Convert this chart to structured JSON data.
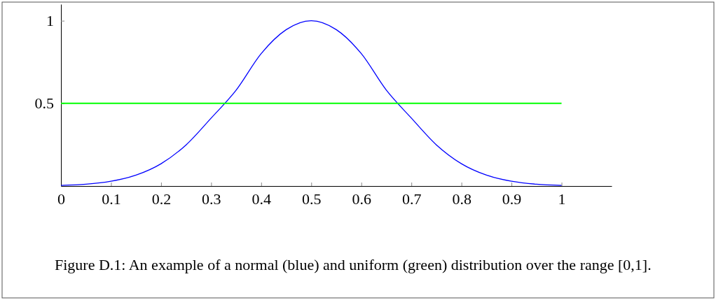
{
  "chart_data": {
    "type": "line",
    "xlim": [
      0,
      1.1
    ],
    "ylim": [
      0,
      1.1
    ],
    "xticks": [
      0,
      0.1,
      0.2,
      0.3,
      0.4,
      0.5,
      0.6,
      0.7,
      0.8,
      0.9,
      1
    ],
    "yticks": [
      0.5,
      1
    ],
    "series": [
      {
        "color": "#0000ff",
        "x": [
          0,
          0.05,
          0.1,
          0.15,
          0.2,
          0.25,
          0.3,
          0.35,
          0.4,
          0.45,
          0.5,
          0.55,
          0.6,
          0.65,
          0.7,
          0.75,
          0.8,
          0.85,
          0.9,
          0.95,
          1
        ],
        "values": [
          0.004,
          0.011,
          0.029,
          0.066,
          0.135,
          0.249,
          0.411,
          0.58,
          0.801,
          0.946,
          1,
          0.946,
          0.801,
          0.58,
          0.411,
          0.249,
          0.135,
          0.066,
          0.029,
          0.011,
          0.004
        ]
      },
      {
        "color": "#00ff00",
        "x": [
          0,
          1
        ],
        "values": [
          0.5,
          0.5
        ]
      }
    ],
    "grid": false,
    "marker": "none",
    "line_style": "solid",
    "annotations": [
      "Figure D.1: An example of a normal (blue) and uniform (green) distribution over the range [0,1]."
    ]
  }
}
